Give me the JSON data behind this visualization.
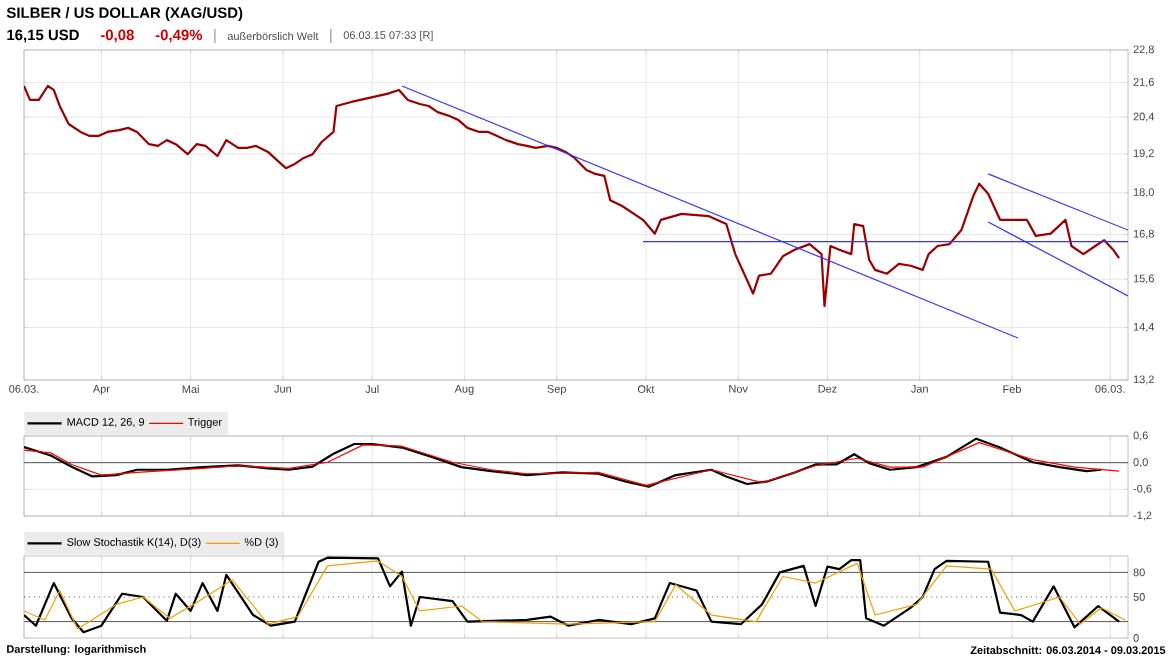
{
  "chart_data": [
    {
      "type": "line",
      "title": "SILBER / US DOLLAR (XAG/USD)",
      "subtitle": "16,15 USD",
      "annotations": [
        "-0,08",
        "-0,49%",
        "außerbörslich Welt",
        "06.03.15 07:33 [R]"
      ],
      "log": true,
      "grid": true,
      "xlim": [
        "2014-03-06",
        "2015-03-12"
      ],
      "ylim": [
        13.2,
        22.8
      ],
      "xticks": [
        {
          "value": "2014-03-06",
          "label": "06.03."
        },
        {
          "value": "2014-04-01",
          "label": "Apr"
        },
        {
          "value": "2014-05-01",
          "label": "Mai"
        },
        {
          "value": "2014-06-01",
          "label": "Jun"
        },
        {
          "value": "2014-07-01",
          "label": "Jul"
        },
        {
          "value": "2014-08-01",
          "label": "Aug"
        },
        {
          "value": "2014-09-01",
          "label": "Sep"
        },
        {
          "value": "2014-10-01",
          "label": "Okt"
        },
        {
          "value": "2014-11-01",
          "label": "Nov"
        },
        {
          "value": "2014-12-01",
          "label": "Dez"
        },
        {
          "value": "2015-01-01",
          "label": "Jan"
        },
        {
          "value": "2015-02-01",
          "label": "Feb"
        },
        {
          "value": "2015-03-06",
          "label": "06.03."
        }
      ],
      "yticks": [
        {
          "value": 13.2,
          "label": "13,2"
        },
        {
          "value": 14.4,
          "label": "14,4"
        },
        {
          "value": 15.6,
          "label": "15,6"
        },
        {
          "value": 16.8,
          "label": "16,8"
        },
        {
          "value": 18.0,
          "label": "18,0"
        },
        {
          "value": 19.2,
          "label": "19,2"
        },
        {
          "value": 20.4,
          "label": "20,4"
        },
        {
          "value": 21.6,
          "label": "21,6"
        },
        {
          "value": 22.8,
          "label": "22,8"
        }
      ],
      "series": [
        {
          "color": "#990000",
          "x": [
            "2014-03-06",
            "2014-03-08",
            "2014-03-11",
            "2014-03-14",
            "2014-03-16",
            "2014-03-18",
            "2014-03-21",
            "2014-03-25",
            "2014-03-28",
            "2014-03-31",
            "2014-04-03",
            "2014-04-07",
            "2014-04-10",
            "2014-04-13",
            "2014-04-17",
            "2014-04-20",
            "2014-04-23",
            "2014-04-26",
            "2014-04-30",
            "2014-05-03",
            "2014-05-06",
            "2014-05-10",
            "2014-05-13",
            "2014-05-17",
            "2014-05-20",
            "2014-05-23",
            "2014-05-27",
            "2014-05-30",
            "2014-06-02",
            "2014-06-05",
            "2014-06-08",
            "2014-06-11",
            "2014-06-14",
            "2014-06-18",
            "2014-06-19",
            "2014-06-24",
            "2014-06-27",
            "2014-06-30",
            "2014-07-03",
            "2014-07-06",
            "2014-07-10",
            "2014-07-13",
            "2014-07-17",
            "2014-07-20",
            "2014-07-23",
            "2014-07-27",
            "2014-07-30",
            "2014-08-02",
            "2014-08-06",
            "2014-08-09",
            "2014-08-12",
            "2014-08-15",
            "2014-08-19",
            "2014-08-22",
            "2014-08-25",
            "2014-08-29",
            "2014-09-01",
            "2014-09-04",
            "2014-09-07",
            "2014-09-11",
            "2014-09-14",
            "2014-09-17",
            "2014-09-19",
            "2014-09-23",
            "2014-09-30",
            "2014-10-04",
            "2014-10-06",
            "2014-10-13",
            "2014-10-22",
            "2014-10-28",
            "2014-10-31",
            "2014-11-04",
            "2014-11-06",
            "2014-11-08",
            "2014-11-12",
            "2014-11-16",
            "2014-11-20",
            "2014-11-25",
            "2014-11-29",
            "2014-11-30",
            "2014-12-02",
            "2014-12-05",
            "2014-12-09",
            "2014-12-10",
            "2014-12-13",
            "2014-12-15",
            "2014-12-17",
            "2014-12-21",
            "2014-12-25",
            "2014-12-29",
            "2015-01-02",
            "2015-01-04",
            "2015-01-07",
            "2015-01-11",
            "2015-01-15",
            "2015-01-19",
            "2015-01-21",
            "2015-01-24",
            "2015-01-28",
            "2015-02-01",
            "2015-02-06",
            "2015-02-09",
            "2015-02-14",
            "2015-02-19",
            "2015-02-21",
            "2015-02-25",
            "2015-03-01",
            "2015-03-04",
            "2015-03-07",
            "2015-03-09"
          ],
          "values": [
            21.48,
            20.99,
            20.99,
            21.48,
            21.34,
            20.78,
            20.17,
            19.91,
            19.78,
            19.78,
            19.91,
            19.97,
            20.04,
            19.91,
            19.51,
            19.45,
            19.64,
            19.51,
            19.19,
            19.51,
            19.45,
            19.13,
            19.64,
            19.39,
            19.39,
            19.45,
            19.26,
            19.0,
            18.75,
            18.88,
            19.07,
            19.19,
            19.58,
            19.91,
            20.78,
            20.92,
            20.99,
            21.06,
            21.13,
            21.2,
            21.34,
            20.99,
            20.85,
            20.78,
            20.57,
            20.44,
            20.3,
            20.04,
            19.91,
            19.91,
            19.78,
            19.64,
            19.51,
            19.45,
            19.39,
            19.45,
            19.39,
            19.26,
            19.07,
            18.69,
            18.57,
            18.51,
            17.78,
            17.61,
            17.21,
            16.82,
            17.21,
            17.38,
            17.32,
            17.09,
            16.26,
            15.57,
            15.23,
            15.69,
            15.74,
            16.2,
            16.38,
            16.53,
            16.26,
            14.92,
            16.48,
            16.38,
            16.26,
            17.09,
            17.03,
            16.11,
            15.84,
            15.74,
            16.0,
            15.95,
            15.84,
            16.26,
            16.48,
            16.53,
            16.92,
            17.9,
            18.27,
            17.97,
            17.21,
            17.21,
            17.21,
            16.76,
            16.82,
            17.21,
            16.48,
            16.26,
            16.48,
            16.64,
            16.38,
            16.15
          ]
        },
        {
          "color": "#3333ff",
          "x": [
            "2014-07-11",
            "2015-02-03"
          ],
          "values": [
            21.48,
            14.15
          ]
        },
        {
          "color": "#3333ff",
          "x": [
            "2014-09-30",
            "2015-03-12"
          ],
          "values": [
            16.6,
            16.6
          ]
        },
        {
          "color": "#3333ff",
          "x": [
            "2015-01-24",
            "2015-03-12"
          ],
          "values": [
            18.57,
            16.92
          ]
        },
        {
          "color": "#3333ff",
          "x": [
            "2015-01-24",
            "2015-03-12"
          ],
          "values": [
            17.15,
            15.17
          ]
        }
      ]
    },
    {
      "type": "line",
      "grid": true,
      "legend": "top left",
      "tick_labels": "y",
      "xlim": [
        "2014-03-06",
        "2015-03-12"
      ],
      "ylim": [
        -1.2,
        0.6
      ],
      "xticks": [
        {
          "value": "2014-03-06",
          "label": null
        },
        {
          "value": "2014-04-01",
          "label": null
        },
        {
          "value": "2014-05-01",
          "label": null
        },
        {
          "value": "2014-06-01",
          "label": null
        },
        {
          "value": "2014-07-01",
          "label": null
        },
        {
          "value": "2014-08-01",
          "label": null
        },
        {
          "value": "2014-09-01",
          "label": null
        },
        {
          "value": "2014-10-01",
          "label": null
        },
        {
          "value": "2014-11-01",
          "label": null
        },
        {
          "value": "2014-12-01",
          "label": null
        },
        {
          "value": "2015-01-01",
          "label": null
        },
        {
          "value": "2015-02-01",
          "label": null
        },
        {
          "value": "2015-03-06",
          "label": null
        }
      ],
      "yticks": [
        {
          "value": -1.2,
          "label": "-1,2"
        },
        {
          "value": -0.6,
          "label": "-0,6"
        },
        {
          "value": 0,
          "label": "0,0"
        },
        {
          "value": 0.6,
          "label": "0,6"
        }
      ],
      "ref_lines": [
        {
          "axis": "y",
          "value": 0,
          "color": "#555555"
        }
      ],
      "series": [
        {
          "name": "MACD 12, 26, 9",
          "color": "#000000",
          "x": [
            "2014-03-06",
            "2014-03-15",
            "2014-03-22",
            "2014-03-29",
            "2014-04-06",
            "2014-04-13",
            "2014-04-23",
            "2014-05-05",
            "2014-05-17",
            "2014-05-27",
            "2014-06-03",
            "2014-06-11",
            "2014-06-18",
            "2014-06-25",
            "2014-07-01",
            "2014-07-11",
            "2014-07-21",
            "2014-07-31",
            "2014-08-10",
            "2014-08-22",
            "2014-09-03",
            "2014-09-15",
            "2014-09-24",
            "2014-10-02",
            "2014-10-11",
            "2014-10-23",
            "2014-10-28",
            "2014-11-04",
            "2014-11-11",
            "2014-11-20",
            "2014-11-27",
            "2014-12-04",
            "2014-12-10",
            "2014-12-15",
            "2014-12-22",
            "2014-12-31",
            "2015-01-10",
            "2015-01-20",
            "2015-01-28",
            "2015-02-08",
            "2015-02-17",
            "2015-02-26",
            "2015-03-03"
          ],
          "values": [
            0.35,
            0.16,
            -0.09,
            -0.31,
            -0.28,
            -0.16,
            -0.16,
            -0.1,
            -0.06,
            -0.13,
            -0.16,
            -0.09,
            0.2,
            0.42,
            0.42,
            0.34,
            0.13,
            -0.1,
            -0.19,
            -0.28,
            -0.22,
            -0.25,
            -0.42,
            -0.54,
            -0.28,
            -0.16,
            -0.31,
            -0.48,
            -0.42,
            -0.22,
            -0.04,
            -0.04,
            0.19,
            -0.01,
            -0.16,
            -0.1,
            0.13,
            0.54,
            0.34,
            0.01,
            -0.1,
            -0.19,
            -0.16
          ]
        },
        {
          "name": "Trigger",
          "color": "#ff0000",
          "x": [
            "2014-03-06",
            "2014-03-15",
            "2014-03-22",
            "2014-04-01",
            "2014-04-13",
            "2014-05-05",
            "2014-05-17",
            "2014-06-03",
            "2014-06-16",
            "2014-06-28",
            "2014-07-11",
            "2014-07-28",
            "2014-08-10",
            "2014-08-22",
            "2014-09-15",
            "2014-10-01",
            "2014-10-23",
            "2014-11-09",
            "2014-11-27",
            "2014-12-11",
            "2014-12-22",
            "2015-01-02",
            "2015-01-21",
            "2015-02-08",
            "2015-02-22",
            "2015-03-09"
          ],
          "values": [
            0.28,
            0.22,
            -0.04,
            -0.28,
            -0.22,
            -0.13,
            -0.07,
            -0.13,
            0.01,
            0.4,
            0.37,
            0.01,
            -0.16,
            -0.25,
            -0.22,
            -0.51,
            -0.16,
            -0.45,
            -0.07,
            0.1,
            -0.1,
            -0.1,
            0.45,
            0.07,
            -0.1,
            -0.19
          ]
        }
      ]
    },
    {
      "type": "line",
      "grid": "x",
      "legend": "top left",
      "tick_labels": "y",
      "annotations": [
        "Darstellung: logarithmisch",
        "Zeitabschnitt: 06.03.2014 - 09.03.2015"
      ],
      "xlim": [
        "2014-03-06",
        "2015-03-12"
      ],
      "ylim": [
        0,
        100
      ],
      "xticks": [
        {
          "value": "2014-03-06",
          "label": null
        },
        {
          "value": "2014-04-01",
          "label": null
        },
        {
          "value": "2014-05-01",
          "label": null
        },
        {
          "value": "2014-06-01",
          "label": null
        },
        {
          "value": "2014-07-01",
          "label": null
        },
        {
          "value": "2014-08-01",
          "label": null
        },
        {
          "value": "2014-09-01",
          "label": null
        },
        {
          "value": "2014-10-01",
          "label": null
        },
        {
          "value": "2014-11-01",
          "label": null
        },
        {
          "value": "2014-12-01",
          "label": null
        },
        {
          "value": "2015-01-01",
          "label": null
        },
        {
          "value": "2015-02-01",
          "label": null
        },
        {
          "value": "2015-03-06",
          "label": null
        }
      ],
      "yticks": [
        0,
        50,
        80
      ],
      "ref_lines": [
        {
          "axis": "y",
          "value": 20,
          "color": "#555555"
        },
        {
          "axis": "y",
          "value": 50,
          "color": "#555555",
          "line_style": "dotted"
        },
        {
          "axis": "y",
          "value": 80,
          "color": "#555555"
        }
      ],
      "series": [
        {
          "name": "Slow Stochastik K(14), D(3)",
          "color": "#000000",
          "x": [
            "2014-03-06",
            "2014-03-10",
            "2014-03-16",
            "2014-03-22",
            "2014-03-26",
            "2014-04-01",
            "2014-04-08",
            "2014-04-15",
            "2014-04-23",
            "2014-04-26",
            "2014-05-01",
            "2014-05-05",
            "2014-05-10",
            "2014-05-13",
            "2014-05-22",
            "2014-05-28",
            "2014-06-05",
            "2014-06-13",
            "2014-06-16",
            "2014-07-03",
            "2014-07-07",
            "2014-07-11",
            "2014-07-14",
            "2014-07-17",
            "2014-07-28",
            "2014-08-02",
            "2014-08-22",
            "2014-08-30",
            "2014-09-05",
            "2014-09-15",
            "2014-09-26",
            "2014-10-04",
            "2014-10-09",
            "2014-10-18",
            "2014-10-23",
            "2014-11-02",
            "2014-11-09",
            "2014-11-15",
            "2014-11-23",
            "2014-11-27",
            "2014-12-01",
            "2014-12-05",
            "2014-12-09",
            "2014-12-12",
            "2014-12-14",
            "2014-12-20",
            "2014-12-29",
            "2015-01-02",
            "2015-01-06",
            "2015-01-10",
            "2015-01-24",
            "2015-01-28",
            "2015-02-04",
            "2015-02-08",
            "2015-02-15",
            "2015-02-22",
            "2015-03-02",
            "2015-03-09"
          ],
          "values": [
            28,
            15,
            67,
            24,
            7,
            15,
            54,
            50,
            21,
            54,
            33,
            67,
            33,
            77,
            28,
            15,
            20,
            93,
            98,
            97,
            63,
            81,
            15,
            50,
            45,
            20,
            22,
            26,
            15,
            22,
            17,
            24,
            67,
            58,
            20,
            17,
            41,
            80,
            88,
            39,
            87,
            84,
            95,
            95,
            24,
            15,
            37,
            50,
            84,
            94,
            93,
            31,
            28,
            20,
            63,
            13,
            39,
            20
          ]
        },
        {
          "name": "%D (3)",
          "color": "#f0a000",
          "x": [
            "2014-03-06",
            "2014-03-13",
            "2014-03-18",
            "2014-03-24",
            "2014-04-06",
            "2014-04-15",
            "2014-04-24",
            "2014-05-02",
            "2014-05-15",
            "2014-05-27",
            "2014-06-06",
            "2014-06-16",
            "2014-07-03",
            "2014-07-11",
            "2014-07-17",
            "2014-07-31",
            "2014-08-07",
            "2014-09-05",
            "2014-10-04",
            "2014-10-11",
            "2014-10-23",
            "2014-11-07",
            "2014-11-16",
            "2014-11-27",
            "2014-12-11",
            "2014-12-17",
            "2014-12-31",
            "2015-01-10",
            "2015-01-25",
            "2015-02-02",
            "2015-02-17",
            "2015-02-24",
            "2015-03-03",
            "2015-03-11"
          ],
          "values": [
            33,
            22,
            58,
            11,
            41,
            50,
            24,
            41,
            71,
            17,
            26,
            88,
            94,
            75,
            33,
            39,
            20,
            17,
            20,
            65,
            28,
            20,
            75,
            67,
            91,
            28,
            41,
            88,
            84,
            33,
            50,
            17,
            37,
            22
          ]
        }
      ]
    }
  ]
}
